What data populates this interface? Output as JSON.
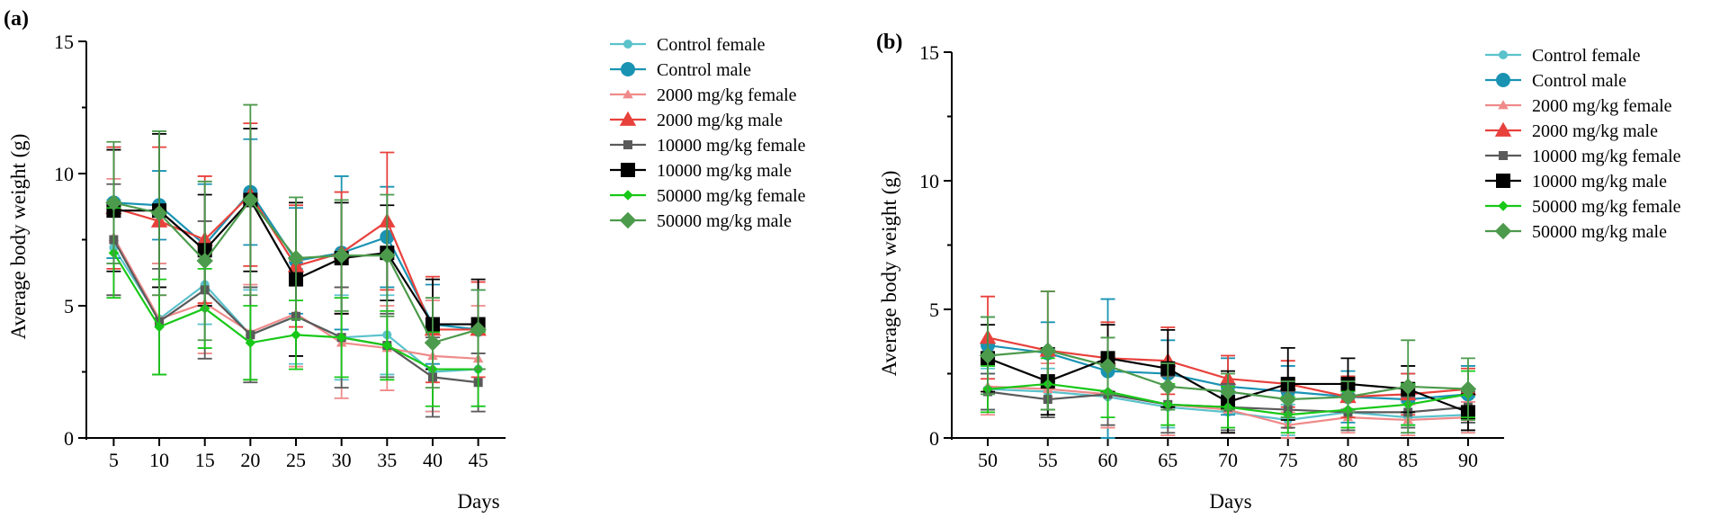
{
  "colors": {
    "Control female": "#5BC2CC",
    "Control male": "#1A93B3",
    "2000 mg/kg female": "#F08A8A",
    "2000 mg/kg male": "#E8413C",
    "10000 mg/kg female": "#5A5A5A",
    "10000 mg/kg male": "#000000",
    "50000 mg/kg female": "#18C818",
    "50000 mg/kg male": "#4C9A4C"
  },
  "markers": {
    "Control female": "circle-small",
    "Control male": "circle",
    "2000 mg/kg female": "triangle-small",
    "2000 mg/kg male": "triangle",
    "10000 mg/kg female": "square-small",
    "10000 mg/kg male": "square",
    "50000 mg/kg female": "diamond-small",
    "50000 mg/kg male": "diamond"
  },
  "chart_data": [
    {
      "type": "line",
      "panel_label": "(a)",
      "xlabel": "Days",
      "ylabel": "Average body weight (g)",
      "ylim": [
        0,
        15
      ],
      "yticks": [
        0,
        5,
        10,
        15
      ],
      "x": [
        5,
        10,
        15,
        20,
        25,
        30,
        35,
        40,
        45
      ],
      "xlim": [
        2,
        48
      ],
      "legend": "top-right",
      "series": [
        {
          "name": "Control female",
          "values": [
            7.2,
            4.5,
            5.8,
            3.9,
            4.6,
            3.8,
            3.9,
            2.5,
            2.6
          ],
          "errors": [
            1.8,
            2.1,
            1.5,
            1.7,
            1.8,
            1.6,
            1.5,
            1.5,
            1.4
          ]
        },
        {
          "name": "Control male",
          "values": [
            8.9,
            8.8,
            7.3,
            9.3,
            6.7,
            7.0,
            7.6,
            4.3,
            4.1
          ],
          "errors": [
            2.1,
            1.3,
            2.3,
            2.0,
            2.0,
            2.9,
            1.9,
            1.5,
            1.5
          ]
        },
        {
          "name": "2000 mg/kg female",
          "values": [
            7.6,
            4.5,
            5.1,
            4.0,
            4.7,
            3.6,
            3.4,
            3.1,
            3.0
          ],
          "errors": [
            2.2,
            2.1,
            1.9,
            1.8,
            2.0,
            2.1,
            1.6,
            2.1,
            2.0
          ]
        },
        {
          "name": "2000 mg/kg male",
          "values": [
            8.7,
            8.2,
            7.5,
            9.2,
            6.5,
            7.0,
            8.2,
            4.1,
            4.1
          ],
          "errors": [
            2.3,
            2.8,
            2.4,
            2.7,
            2.3,
            2.3,
            2.6,
            2.0,
            1.8
          ]
        },
        {
          "name": "10000 mg/kg female",
          "values": [
            7.5,
            4.4,
            5.6,
            3.9,
            4.6,
            3.8,
            3.5,
            2.3,
            2.1
          ],
          "errors": [
            2.1,
            2.0,
            2.6,
            1.8,
            1.5,
            1.9,
            1.2,
            1.5,
            1.1
          ]
        },
        {
          "name": "10000 mg/kg male",
          "values": [
            8.6,
            8.6,
            7.1,
            9.0,
            6.0,
            6.8,
            7.0,
            4.3,
            4.3
          ],
          "errors": [
            2.3,
            2.9,
            2.1,
            2.7,
            2.9,
            2.1,
            1.8,
            1.7,
            1.7
          ]
        },
        {
          "name": "50000 mg/kg female",
          "values": [
            7.0,
            4.2,
            4.9,
            3.6,
            3.9,
            3.8,
            3.5,
            2.6,
            2.6
          ],
          "errors": [
            1.7,
            1.8,
            1.5,
            1.4,
            1.3,
            1.5,
            1.3,
            1.4,
            1.4
          ]
        },
        {
          "name": "50000 mg/kg male",
          "values": [
            8.9,
            8.5,
            6.7,
            9.0,
            6.8,
            6.9,
            6.9,
            3.6,
            4.1
          ],
          "errors": [
            2.3,
            3.1,
            3.0,
            3.6,
            2.3,
            2.1,
            2.3,
            1.7,
            1.5
          ]
        }
      ]
    },
    {
      "type": "line",
      "panel_label": "(b)",
      "xlabel": "Days",
      "ylabel": "Average body weight (g)",
      "ylim": [
        0,
        15
      ],
      "yticks": [
        0,
        5,
        10,
        15
      ],
      "x": [
        50,
        55,
        60,
        65,
        70,
        75,
        80,
        85,
        90
      ],
      "xlim": [
        47,
        93
      ],
      "legend": "top-right",
      "series": [
        {
          "name": "Control female",
          "values": [
            1.9,
            1.8,
            1.6,
            1.2,
            1.0,
            0.7,
            1.0,
            0.8,
            0.9
          ],
          "errors": [
            0.8,
            0.9,
            1.6,
            0.8,
            0.7,
            0.6,
            0.7,
            0.6,
            0.7
          ]
        },
        {
          "name": "Control male",
          "values": [
            3.6,
            3.3,
            2.6,
            2.5,
            2.0,
            1.8,
            1.6,
            1.5,
            1.7
          ],
          "errors": [
            1.1,
            1.2,
            2.8,
            1.3,
            1.1,
            1.0,
            1.0,
            1.0,
            1.1
          ]
        },
        {
          "name": "2000 mg/kg female",
          "values": [
            2.0,
            1.9,
            1.7,
            1.3,
            1.1,
            0.5,
            0.8,
            0.7,
            0.8
          ],
          "errors": [
            1.1,
            1.0,
            1.3,
            1.2,
            0.9,
            0.5,
            0.6,
            0.6,
            0.6
          ]
        },
        {
          "name": "2000 mg/kg male",
          "values": [
            3.9,
            3.4,
            3.1,
            3.0,
            2.3,
            2.1,
            1.6,
            1.7,
            1.9
          ],
          "errors": [
            1.6,
            2.3,
            1.4,
            1.3,
            0.9,
            0.9,
            0.8,
            0.8,
            0.8
          ]
        },
        {
          "name": "10000 mg/kg female",
          "values": [
            1.8,
            1.5,
            1.7,
            1.3,
            1.2,
            1.1,
            1.0,
            1.0,
            1.2
          ],
          "errors": [
            0.7,
            0.7,
            1.2,
            1.1,
            0.9,
            0.7,
            0.7,
            0.6,
            0.6
          ]
        },
        {
          "name": "10000 mg/kg male",
          "values": [
            3.1,
            2.2,
            3.1,
            2.7,
            1.4,
            2.1,
            2.1,
            1.9,
            1.0
          ],
          "errors": [
            1.3,
            1.3,
            1.3,
            1.5,
            1.2,
            1.4,
            1.0,
            0.9,
            0.7
          ]
        },
        {
          "name": "50000 mg/kg female",
          "values": [
            1.9,
            2.1,
            1.8,
            1.3,
            1.2,
            0.9,
            1.1,
            1.3,
            1.7
          ],
          "errors": [
            0.9,
            1.0,
            1.0,
            0.8,
            0.8,
            0.7,
            0.7,
            0.8,
            0.9
          ]
        },
        {
          "name": "50000 mg/kg male",
          "values": [
            3.2,
            3.4,
            2.8,
            2.0,
            1.8,
            1.5,
            1.6,
            2.0,
            1.9
          ],
          "errors": [
            1.5,
            2.3,
            1.1,
            0.9,
            0.7,
            0.7,
            0.6,
            1.8,
            1.2
          ]
        }
      ]
    }
  ]
}
